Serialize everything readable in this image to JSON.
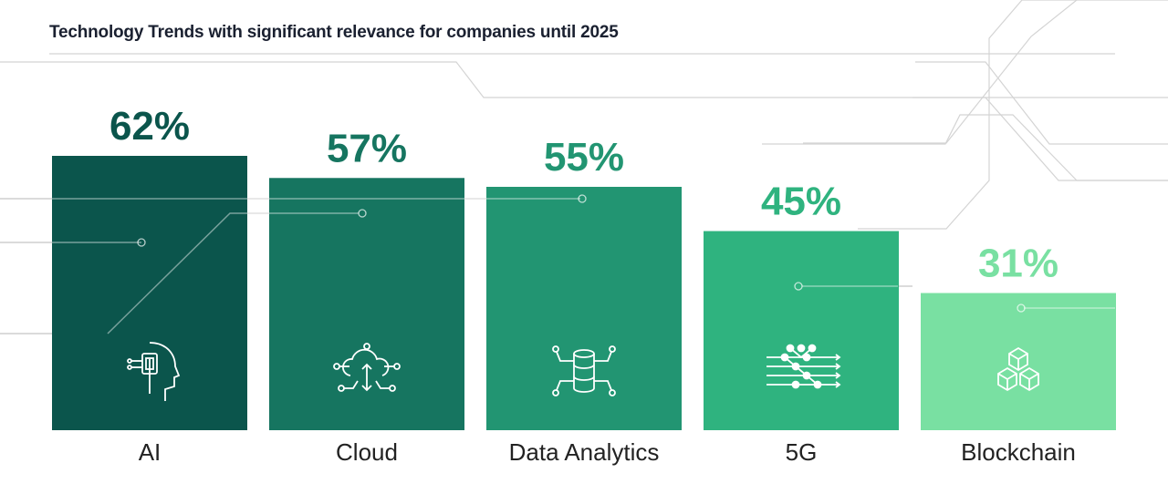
{
  "chart_data": {
    "type": "bar",
    "title": "Technology Trends with significant relevance for companies until 2025",
    "categories": [
      "AI",
      "Cloud",
      "Data Analytics",
      "5G",
      "Blockchain"
    ],
    "values": [
      62,
      57,
      55,
      45,
      31
    ],
    "value_labels": [
      "62%",
      "57%",
      "55%",
      "45%",
      "31%"
    ],
    "unit": "%",
    "colors": [
      "#0b554c",
      "#167560",
      "#229572",
      "#2fb37f",
      "#79e0a2"
    ],
    "icons": [
      "ai-head-chip-icon",
      "cloud-network-icon",
      "database-network-icon",
      "network-nodes-icon",
      "blockchain-cubes-icon"
    ],
    "grid": false,
    "legend": "none",
    "xlabel": "",
    "ylabel": ""
  }
}
